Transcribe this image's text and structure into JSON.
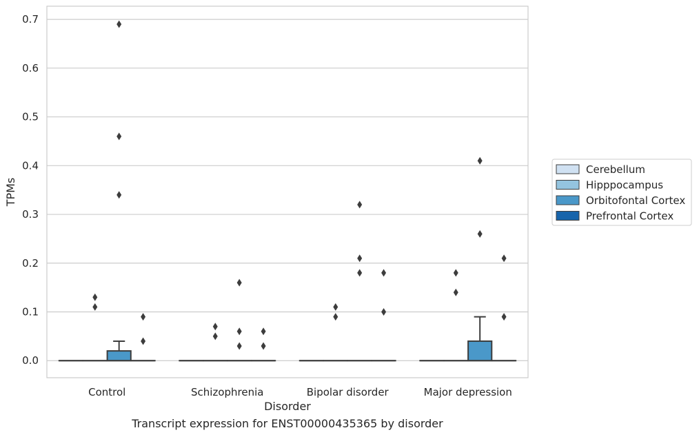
{
  "caption": "Transcript expression for ENST00000435365 by disorder",
  "chart_data": {
    "type": "box",
    "xlabel": "Disorder",
    "ylabel": "TPMs",
    "categories": [
      "Control",
      "Schizophrenia",
      "Bipolar disorder",
      "Major depression"
    ],
    "ylim": [
      -0.035,
      0.727
    ],
    "yticks": [
      "0.0",
      "0.1",
      "0.2",
      "0.3",
      "0.4",
      "0.5",
      "0.6",
      "0.7"
    ],
    "grid": "horizontal",
    "legend_position": "right",
    "colors": {
      "Cerebellum": "#d0e1f2",
      "Hipppocampus": "#94c4df",
      "Orbitofontal Cortex": "#4a98c9",
      "Prefrontal Cortex": "#1764ab"
    },
    "series": [
      {
        "name": "Cerebellum",
        "boxes": [
          {
            "q1": 0,
            "median": 0,
            "q3": 0,
            "whisker_low": 0,
            "whisker_high": 0,
            "outliers": []
          },
          {
            "q1": 0,
            "median": 0,
            "q3": 0,
            "whisker_low": 0,
            "whisker_high": 0,
            "outliers": []
          },
          {
            "q1": 0,
            "median": 0,
            "q3": 0,
            "whisker_low": 0,
            "whisker_high": 0,
            "outliers": []
          },
          {
            "q1": 0,
            "median": 0,
            "q3": 0,
            "whisker_low": 0,
            "whisker_high": 0,
            "outliers": []
          }
        ]
      },
      {
        "name": "Hipppocampus",
        "boxes": [
          {
            "q1": 0,
            "median": 0,
            "q3": 0,
            "whisker_low": 0,
            "whisker_high": 0,
            "outliers": [
              0.13,
              0.11
            ]
          },
          {
            "q1": 0,
            "median": 0,
            "q3": 0,
            "whisker_low": 0,
            "whisker_high": 0,
            "outliers": [
              0.07,
              0.05
            ]
          },
          {
            "q1": 0,
            "median": 0,
            "q3": 0,
            "whisker_low": 0,
            "whisker_high": 0,
            "outliers": [
              0.11,
              0.09
            ]
          },
          {
            "q1": 0,
            "median": 0,
            "q3": 0,
            "whisker_low": 0,
            "whisker_high": 0,
            "outliers": [
              0.18,
              0.14
            ]
          }
        ]
      },
      {
        "name": "Orbitofontal Cortex",
        "boxes": [
          {
            "q1": 0,
            "median": 0,
            "q3": 0.02,
            "whisker_low": 0,
            "whisker_high": 0.04,
            "outliers": [
              0.69,
              0.46,
              0.34
            ]
          },
          {
            "q1": 0,
            "median": 0,
            "q3": 0,
            "whisker_low": 0,
            "whisker_high": 0,
            "outliers": [
              0.16,
              0.06,
              0.03
            ]
          },
          {
            "q1": 0,
            "median": 0,
            "q3": 0,
            "whisker_low": 0,
            "whisker_high": 0,
            "outliers": [
              0.21,
              0.32,
              0.18
            ]
          },
          {
            "q1": 0,
            "median": 0,
            "q3": 0.04,
            "whisker_low": 0,
            "whisker_high": 0.09,
            "outliers": [
              0.41,
              0.26
            ]
          }
        ]
      },
      {
        "name": "Prefrontal Cortex",
        "boxes": [
          {
            "q1": 0,
            "median": 0,
            "q3": 0,
            "whisker_low": 0,
            "whisker_high": 0,
            "outliers": [
              0.09,
              0.04
            ]
          },
          {
            "q1": 0,
            "median": 0,
            "q3": 0,
            "whisker_low": 0,
            "whisker_high": 0,
            "outliers": [
              0.03,
              0.06
            ]
          },
          {
            "q1": 0,
            "median": 0,
            "q3": 0,
            "whisker_low": 0,
            "whisker_high": 0,
            "outliers": [
              0.18,
              0.1
            ]
          },
          {
            "q1": 0,
            "median": 0,
            "q3": 0,
            "whisker_low": 0,
            "whisker_high": 0,
            "outliers": [
              0.21,
              0.09
            ]
          }
        ]
      }
    ]
  }
}
